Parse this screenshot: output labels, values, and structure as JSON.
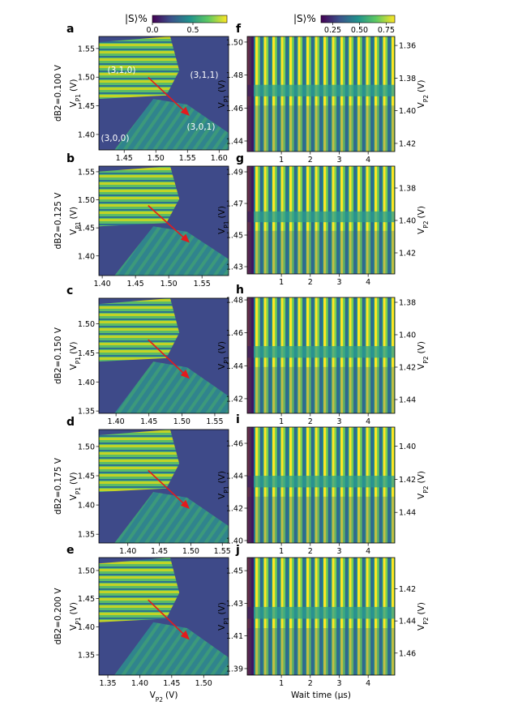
{
  "chart_data": [
    {
      "type": "colorbar",
      "label": "|S⟩%",
      "xlim": [
        0,
        0.92
      ],
      "xticks": [
        {
          "value": 0,
          "label": "0.0"
        },
        0.5
      ]
    },
    {
      "type": "colorbar",
      "label": "|S⟩%",
      "xlim": [
        0.14,
        0.83
      ],
      "xticks": [
        0.25,
        {
          "value": 0.5,
          "label": "0.50"
        },
        0.75
      ]
    },
    {
      "type": "heatmap",
      "panel": "a",
      "condition": "dB2=0.100 V",
      "ylabel": {
        "symbol": "V",
        "subscript": "P1",
        "unit": "(V)"
      },
      "annotations": [
        "(3,1,0)",
        "(3,1,1)",
        "(3,0,1)",
        "(3,0,0)"
      ],
      "xlim": [
        1.41,
        1.615
      ],
      "xticks": [
        1.45,
        {
          "value": 1.5,
          "label": "1.50"
        },
        1.55,
        {
          "value": 1.6,
          "label": "1.60"
        }
      ],
      "ylim": [
        1.373,
        1.571
      ],
      "yticks": [
        {
          "value": 1.4,
          "label": "1.40"
        },
        1.45,
        {
          "value": 1.5,
          "label": "1.50"
        },
        1.55
      ]
    },
    {
      "type": "heatmap",
      "panel": "b",
      "condition": "dB2=0.125 V",
      "ylabel": {
        "symbol": "V",
        "subscript": "P1",
        "unit": "(V)"
      },
      "xlim": [
        1.395,
        1.59
      ],
      "xticks": [
        {
          "value": 1.4,
          "label": "1.40"
        },
        1.45,
        {
          "value": 1.5,
          "label": "1.50"
        },
        1.55
      ],
      "ylim": [
        1.365,
        1.56
      ],
      "yticks": [
        {
          "value": 1.4,
          "label": "1.40"
        },
        1.45,
        {
          "value": 1.5,
          "label": "1.50"
        },
        1.55
      ]
    },
    {
      "type": "heatmap",
      "panel": "c",
      "condition": "dB2=0.150 V",
      "ylabel": {
        "symbol": "V",
        "subscript": "P1",
        "unit": "(V)"
      },
      "xlim": [
        1.374,
        1.571
      ],
      "xticks": [
        {
          "value": 1.4,
          "label": "1.40"
        },
        1.45,
        {
          "value": 1.5,
          "label": "1.50"
        },
        1.55
      ],
      "ylim": [
        1.346,
        1.544
      ],
      "yticks": [
        1.35,
        {
          "value": 1.4,
          "label": "1.40"
        },
        1.45,
        {
          "value": 1.5,
          "label": "1.50"
        }
      ]
    },
    {
      "type": "heatmap",
      "panel": "d",
      "condition": "dB2=0.175 V",
      "ylabel": {
        "symbol": "V",
        "subscript": "P1",
        "unit": "(V)"
      },
      "xlim": [
        1.354,
        1.56
      ],
      "xticks": [
        {
          "value": 1.4,
          "label": "1.40"
        },
        1.45,
        {
          "value": 1.5,
          "label": "1.50"
        },
        1.55
      ],
      "ylim": [
        1.335,
        1.529
      ],
      "yticks": [
        1.35,
        {
          "value": 1.4,
          "label": "1.40"
        },
        1.45,
        {
          "value": 1.5,
          "label": "1.50"
        }
      ]
    },
    {
      "type": "heatmap",
      "panel": "e",
      "condition": "dB2=0.200 V",
      "ylabel": {
        "symbol": "V",
        "subscript": "P1",
        "unit": "(V)"
      },
      "xlabel": {
        "symbol": "V",
        "subscript": "P2",
        "unit": "(V)"
      },
      "xlim": [
        1.336,
        1.539
      ],
      "xticks": [
        1.35,
        {
          "value": 1.4,
          "label": "1.40"
        },
        1.45,
        {
          "value": 1.5,
          "label": "1.50"
        }
      ],
      "ylim": [
        1.314,
        1.523
      ],
      "yticks": [
        1.35,
        {
          "value": 1.4,
          "label": "1.40"
        },
        1.45,
        {
          "value": 1.5,
          "label": "1.50"
        }
      ]
    },
    {
      "type": "heatmap",
      "panel": "f",
      "ylabel": {
        "symbol": "V",
        "subscript": "P1",
        "unit": "(V)"
      },
      "y2label": {
        "symbol": "V",
        "subscript": "P2",
        "unit": "(V)"
      },
      "xlim": [
        -0.18,
        4.92
      ],
      "xticks": [
        1,
        2,
        3,
        4
      ],
      "ylim": [
        1.4336,
        1.5034
      ],
      "yticks": [
        1.44,
        1.46,
        1.48,
        {
          "value": 1.5,
          "label": "1.50"
        }
      ],
      "y2lim": [
        1.425,
        1.3545
      ],
      "y2ticks": [
        1.36,
        1.38,
        {
          "value": 1.4,
          "label": "1.40"
        },
        1.42
      ]
    },
    {
      "type": "heatmap",
      "panel": "g",
      "ylabel": {
        "symbol": "V",
        "subscript": "P1",
        "unit": "(V)"
      },
      "y2label": {
        "symbol": "V",
        "subscript": "P2",
        "unit": "(V)"
      },
      "xlim": [
        -0.18,
        4.92
      ],
      "xticks": [
        1,
        2,
        3,
        4
      ],
      "ylim": [
        1.4254,
        1.4936
      ],
      "yticks": [
        1.43,
        1.45,
        1.47,
        1.49
      ],
      "y2lim": [
        1.433,
        1.3665
      ],
      "y2ticks": [
        1.38,
        {
          "value": 1.4,
          "label": "1.40"
        },
        1.42
      ]
    },
    {
      "type": "heatmap",
      "panel": "h",
      "ylabel": {
        "symbol": "V",
        "subscript": "P1",
        "unit": "(V)"
      },
      "y2label": {
        "symbol": "V",
        "subscript": "P2",
        "unit": "(V)"
      },
      "xlim": [
        -0.18,
        4.92
      ],
      "xticks": [
        1,
        2,
        3,
        4
      ],
      "ylim": [
        1.4111,
        1.4815
      ],
      "yticks": [
        1.42,
        1.44,
        1.46,
        1.48
      ],
      "y2lim": [
        1.4485,
        1.377
      ],
      "y2ticks": [
        1.38,
        {
          "value": 1.4,
          "label": "1.40"
        },
        1.42,
        1.44
      ]
    },
    {
      "type": "heatmap",
      "panel": "i",
      "ylabel": {
        "symbol": "V",
        "subscript": "P1",
        "unit": "(V)"
      },
      "y2label": {
        "symbol": "V",
        "subscript": "P2",
        "unit": "(V)"
      },
      "xlim": [
        -0.18,
        4.92
      ],
      "xticks": [
        1,
        2,
        3,
        4
      ],
      "ylim": [
        1.3985,
        1.47
      ],
      "yticks": [
        {
          "value": 1.4,
          "label": "1.40"
        },
        1.42,
        1.44,
        1.46
      ],
      "y2lim": [
        1.4585,
        1.3885
      ],
      "y2ticks": [
        {
          "value": 1.4,
          "label": "1.40"
        },
        1.42,
        1.44
      ]
    },
    {
      "type": "heatmap",
      "panel": "j",
      "ylabel": {
        "symbol": "V",
        "subscript": "P1",
        "unit": "(V)"
      },
      "y2label": {
        "symbol": "V",
        "subscript": "P2",
        "unit": "(V)"
      },
      "xlabel": "Wait time (μs)",
      "xlim": [
        -0.18,
        4.92
      ],
      "xticks": [
        1,
        2,
        3,
        4
      ],
      "ylim": [
        1.386,
        1.458
      ],
      "yticks": [
        1.39,
        1.41,
        1.43,
        1.45
      ],
      "y2lim": [
        1.4737,
        1.4006
      ],
      "y2ticks": [
        1.42,
        1.44,
        1.46
      ]
    }
  ]
}
